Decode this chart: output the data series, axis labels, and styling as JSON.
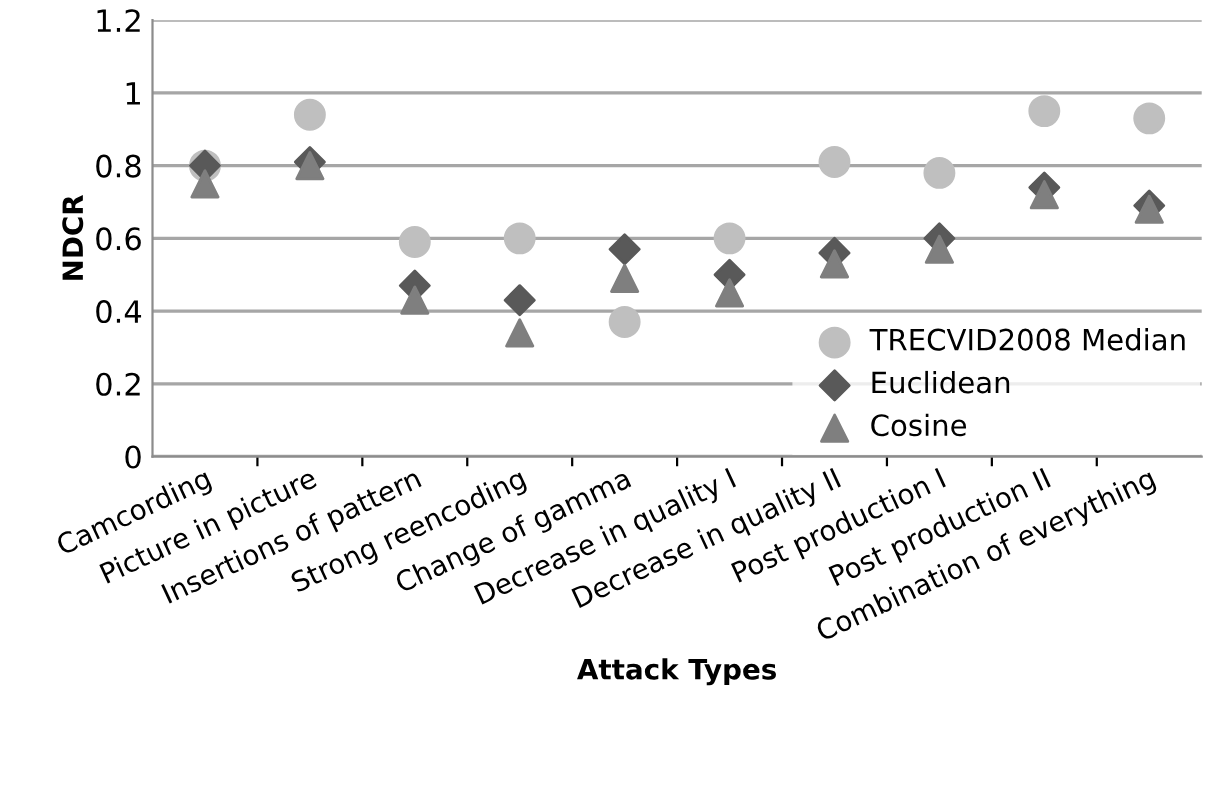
{
  "chart_data": {
    "type": "scatter",
    "xlabel": "Attack Types",
    "ylabel": "NDCR",
    "categories": [
      "Camcording",
      "Picture in picture",
      "Insertions of pattern",
      "Strong reencoding",
      "Change of gamma",
      "Decrease in quality I",
      "Decrease in quality II",
      "Post production I",
      "Post production II",
      "Combination of everything"
    ],
    "series": [
      {
        "name": "TRECVID2008 Median",
        "color": "#bfbfbf",
        "marker": "circle",
        "values": [
          0.8,
          0.94,
          0.59,
          0.6,
          0.37,
          0.6,
          0.81,
          0.78,
          0.95,
          0.93
        ]
      },
      {
        "name": "Euclidean",
        "color": "#595959",
        "marker": "diamond",
        "values": [
          0.8,
          0.81,
          0.47,
          0.43,
          0.57,
          0.5,
          0.56,
          0.6,
          0.74,
          0.69
        ]
      },
      {
        "name": "Cosine",
        "color": "#7f7f7f",
        "marker": "triangle",
        "values": [
          0.75,
          0.8,
          0.43,
          0.34,
          0.49,
          0.45,
          0.53,
          0.57,
          0.72,
          0.68
        ]
      }
    ],
    "ylim": [
      0,
      1.2
    ],
    "yticks": [
      0,
      0.2,
      0.4,
      {
        "value": 0.6,
        "label": "0.6"
      },
      0.8,
      1,
      1.2
    ],
    "grid": "y",
    "legend": "bottom right"
  }
}
